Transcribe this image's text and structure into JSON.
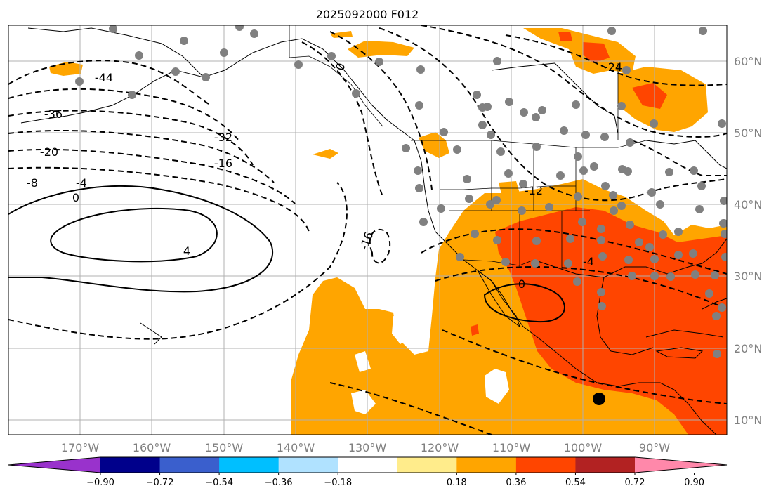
{
  "title": "2025092000 F012",
  "lon_ticks": [
    "170°W",
    "160°W",
    "150°W",
    "140°W",
    "130°W",
    "120°W",
    "110°W",
    "100°W",
    "90°W"
  ],
  "lat_ticks": [
    "60°N",
    "50°N",
    "40°N",
    "30°N",
    "20°N",
    "10°N"
  ],
  "colorbar": {
    "ticks": [
      "−0.90",
      "−0.72",
      "−0.54",
      "−0.36",
      "−0.18",
      "0.18",
      "0.36",
      "0.54",
      "0.72",
      "0.90"
    ],
    "colors": [
      "#9932cc",
      "#00008b",
      "#3a5fcd",
      "#00bfff",
      "#b0e2ff",
      "#ffffff",
      "#ffec8b",
      "#ffa500",
      "#ff4500",
      "#b22222",
      "#ff88aa"
    ]
  },
  "contour_labels": [
    "-44",
    "-36",
    "-32",
    "-20",
    "-16",
    "-8",
    "-4",
    "0",
    "4",
    "-16",
    "0",
    "-12",
    "-4",
    "0",
    "-24"
  ],
  "markers": {
    "station_color": "#808080",
    "highlight_color": "#000000"
  }
}
